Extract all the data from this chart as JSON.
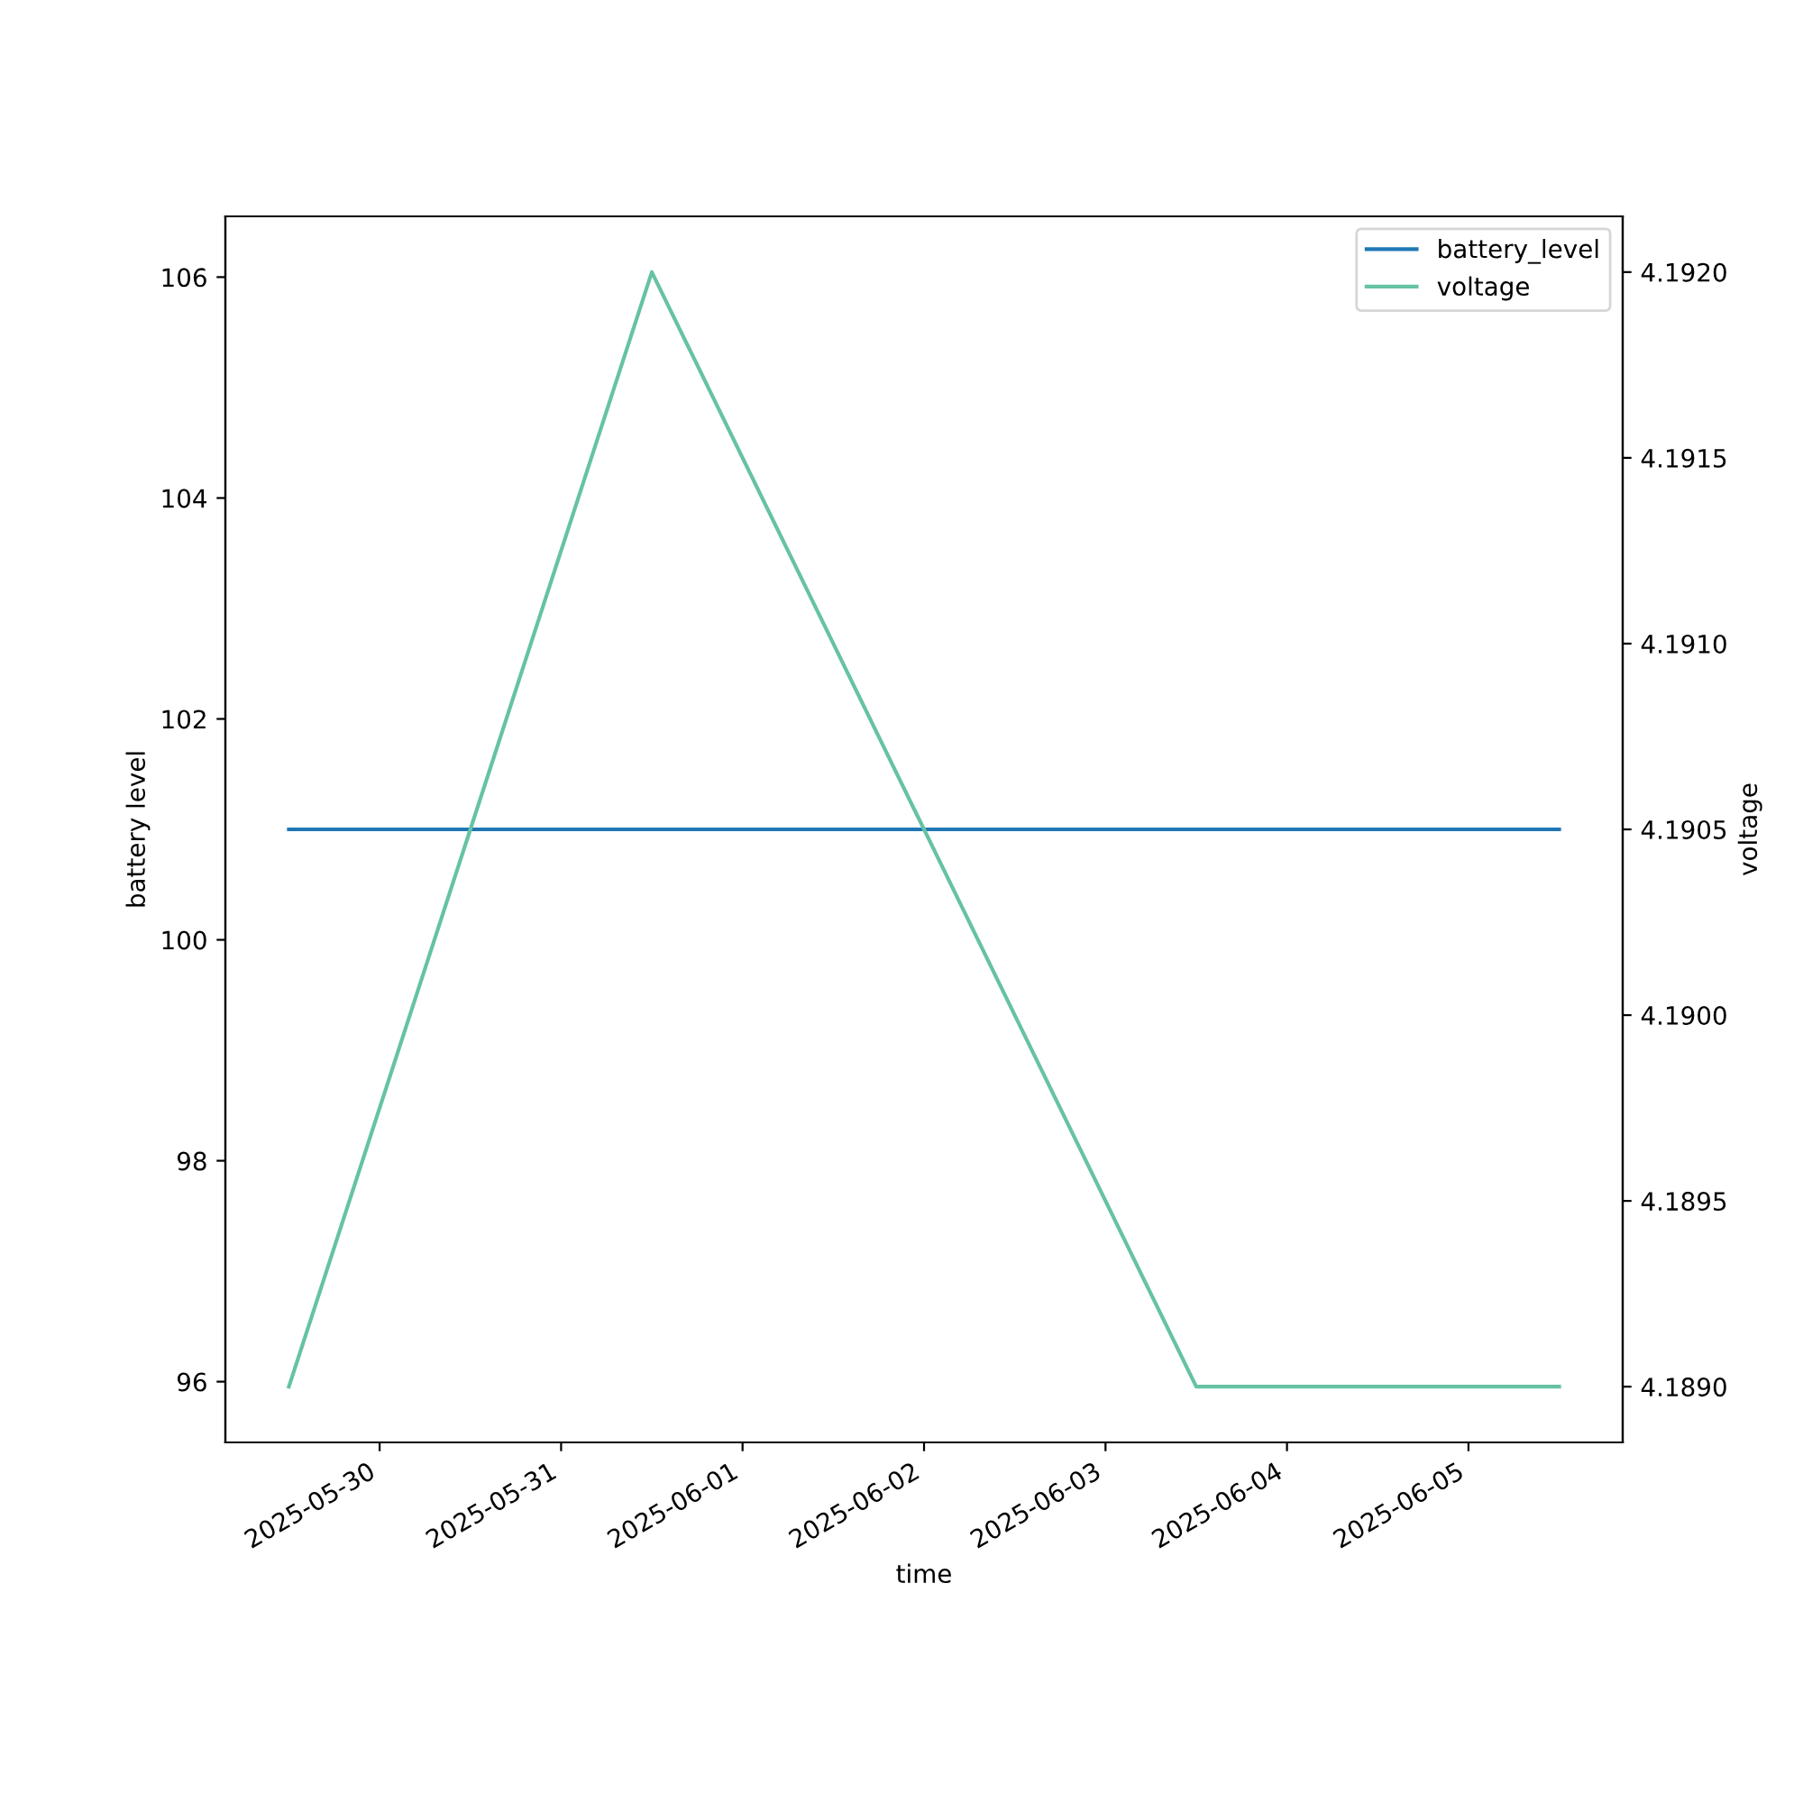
{
  "chart_data": {
    "type": "line",
    "xlabel": "time",
    "ylabel": "battery level",
    "y2label": "voltage",
    "x": [
      "2025-05-29T12:00",
      "2025-05-30T12:00",
      "2025-05-31T12:00",
      "2025-06-01T12:00",
      "2025-06-02T12:00",
      "2025-06-03T12:00",
      "2025-06-04T12:00",
      "2025-06-05T12:00"
    ],
    "series": [
      {
        "name": "battery_level",
        "color": "#1f77b4",
        "values": [
          101,
          101,
          101,
          101,
          101,
          101,
          101,
          101
        ]
      },
      {
        "name": "voltage",
        "color": "#66c2a5",
        "axis": "y2",
        "values": [
          4.189,
          4.1905,
          4.192,
          4.191,
          4.19,
          4.189,
          4.189,
          4.189
        ]
      }
    ],
    "xlim": [
      "2025-05-29T03:36",
      "2025-06-05T20:24"
    ],
    "xticks": [
      "2025-05-30",
      "2025-05-31",
      "2025-06-01",
      "2025-06-02",
      "2025-06-03",
      "2025-06-04",
      "2025-06-05"
    ],
    "ylim": [
      95.45,
      106.55
    ],
    "yticks": [
      96,
      98,
      100,
      102,
      104,
      106
    ],
    "y2lim": [
      4.18885,
      4.19215
    ],
    "y2ticks": [
      {
        "value": 4.189,
        "label": "4.1890"
      },
      {
        "value": 4.1895,
        "label": "4.1895"
      },
      {
        "value": 4.19,
        "label": "4.1900"
      },
      {
        "value": 4.1905,
        "label": "4.1905"
      },
      {
        "value": 4.191,
        "label": "4.1910"
      },
      {
        "value": 4.1915,
        "label": "4.1915"
      },
      {
        "value": 4.192,
        "label": "4.1920"
      }
    ],
    "legend": "top right",
    "grid": false
  }
}
